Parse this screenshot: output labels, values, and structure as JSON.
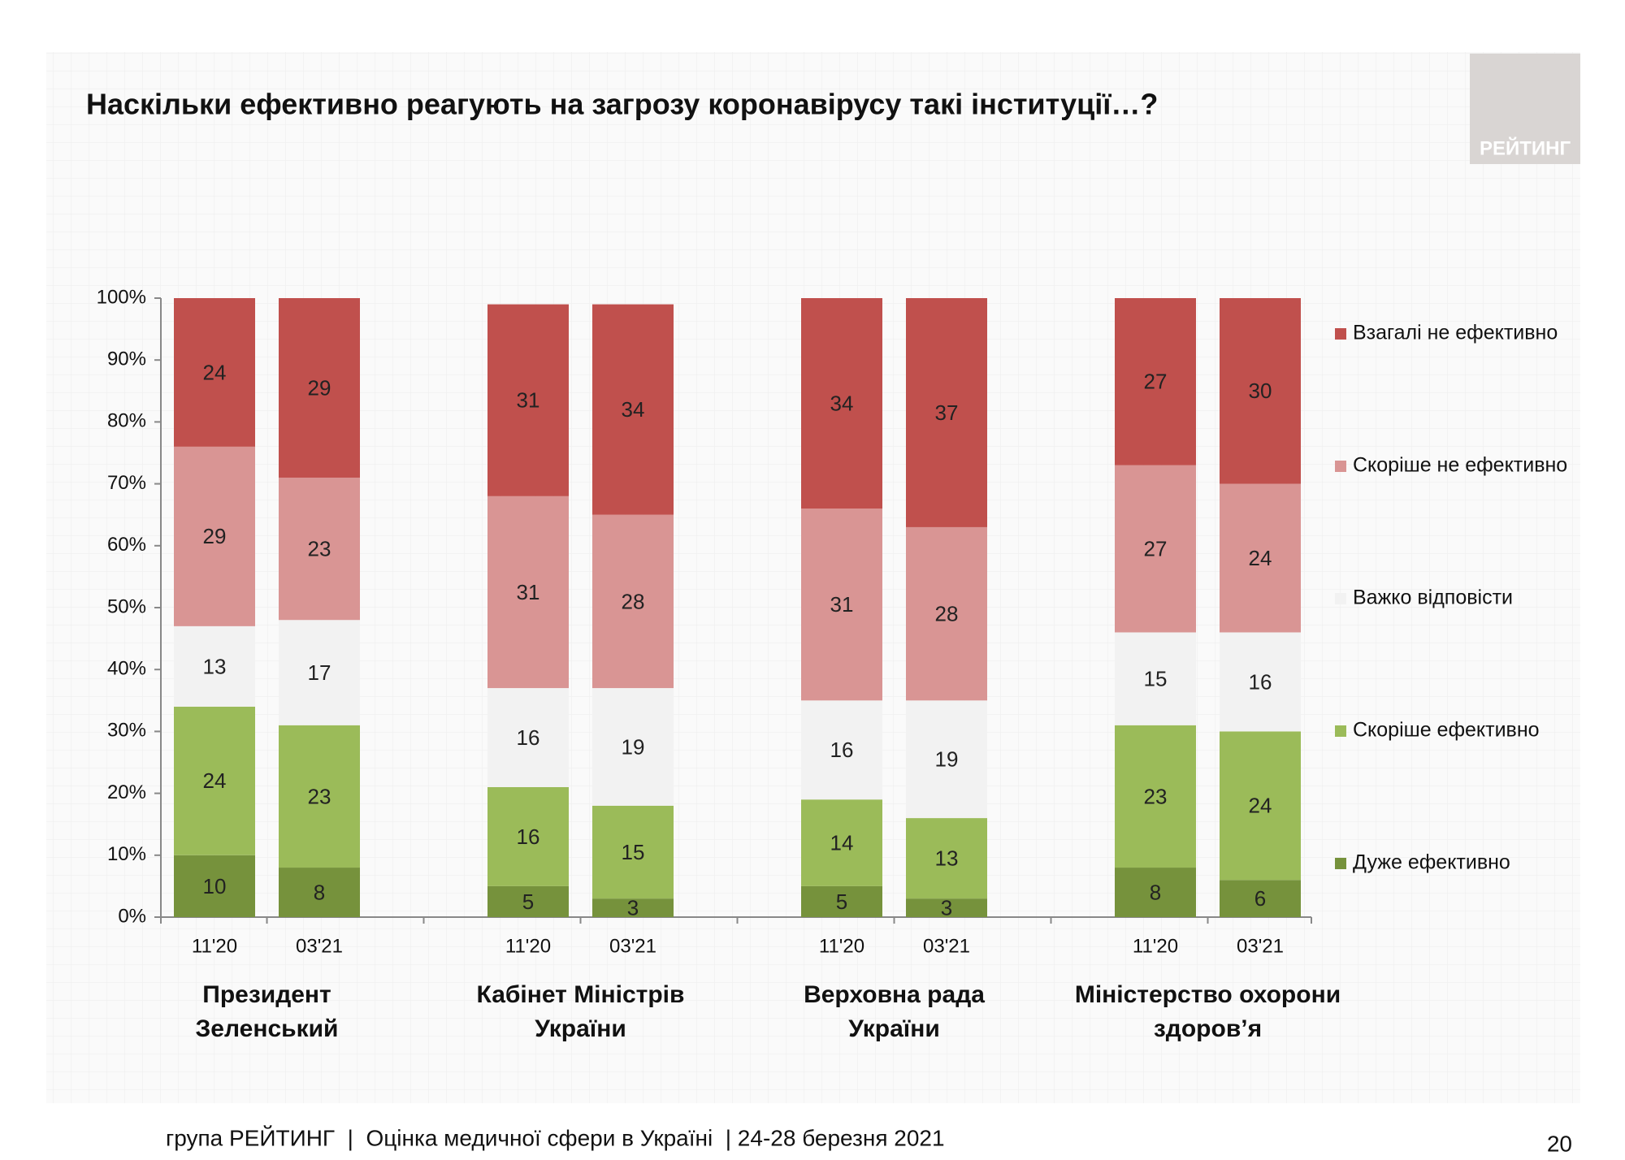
{
  "chart_data": {
    "type": "stacked_bar",
    "title": "Наскільки ефективно реагують на загрозу коронавірусу такі інституції…?",
    "categories": [
      "11'20",
      "03'21",
      "11'20",
      "03'21",
      "11'20",
      "03'21",
      "11'20",
      "03'21"
    ],
    "groups": [
      [
        "Президент",
        "Зеленський"
      ],
      [
        "Кабінет Міністрів",
        "України"
      ],
      [
        "Верховна рада",
        "України"
      ],
      [
        "Міністерство охорони",
        "здоров’я"
      ]
    ],
    "series": [
      {
        "name": "Дуже ефективно",
        "color": "#76923c",
        "values": [
          10,
          8,
          5,
          3,
          5,
          3,
          8,
          6
        ]
      },
      {
        "name": "Скоріше ефективно",
        "color": "#9bbb59",
        "values": [
          24,
          23,
          16,
          15,
          14,
          13,
          23,
          24
        ]
      },
      {
        "name": "Важко відповісти",
        "color": "#f2f2f2",
        "values": [
          13,
          17,
          16,
          19,
          16,
          19,
          15,
          16
        ]
      },
      {
        "name": "Скоріше не ефективно",
        "color": "#d99594",
        "values": [
          29,
          23,
          31,
          28,
          31,
          28,
          27,
          24
        ]
      },
      {
        "name": "Взагалі не ефективно",
        "color": "#c0504d",
        "values": [
          24,
          29,
          31,
          34,
          34,
          37,
          27,
          30
        ]
      }
    ],
    "ylim": [
      0,
      100
    ],
    "yticks": [
      {
        "value": 0,
        "label": "0%"
      },
      {
        "value": 10,
        "label": "10%"
      },
      {
        "value": 20,
        "label": "20%"
      },
      {
        "value": 30,
        "label": "30%"
      },
      {
        "value": 40,
        "label": "40%"
      },
      {
        "value": 50,
        "label": "50%"
      },
      {
        "value": 60,
        "label": "60%"
      },
      {
        "value": 70,
        "label": "70%"
      },
      {
        "value": 80,
        "label": "80%"
      },
      {
        "value": 90,
        "label": "90%"
      },
      {
        "value": 100,
        "label": "100%"
      }
    ],
    "legend": "right"
  },
  "logo": "РЕЙТИНГ",
  "footer": "група РЕЙТИНГ  |  Оцінка медичної сфери в Україні  | 24-28 березня 2021",
  "page_number": "20"
}
